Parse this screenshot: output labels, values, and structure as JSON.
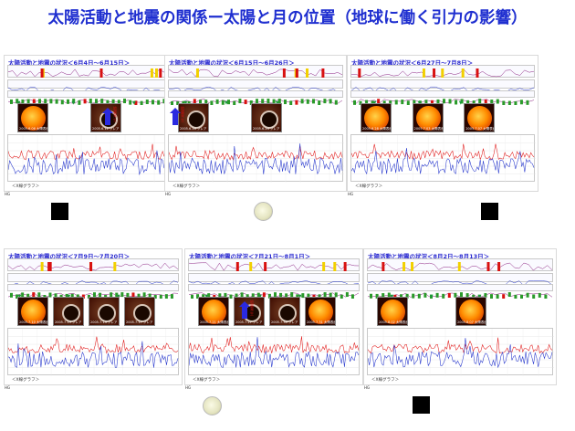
{
  "title": "太陽活動と地震の関係ー太陽と月の位置（地球に働く引力の影響）",
  "panels": [
    {
      "title": "太陽活動と地震の状況＜6月4日～6月15日＞",
      "caption": "＜X線グラフ＞",
      "hg": "HG",
      "images": [
        {
          "kind": "sun",
          "cap": "2005.6.06 太陽表面写真"
        },
        {
          "kind": "flare",
          "cap": "2005.6.11 フレア"
        }
      ],
      "arrow_label": "地震発生",
      "moon": "new"
    },
    {
      "title": "太陽活動と地震の状況＜6月15日～6月26日＞",
      "caption": "＜X線グラフ＞",
      "hg": "HG",
      "images": [
        {
          "kind": "flare",
          "cap": "2005.6.16 フレア"
        },
        {
          "kind": "flare",
          "cap": "2005.6.24 フレア"
        }
      ],
      "arrow_label": "地震発生",
      "moon": "full"
    },
    {
      "title": "太陽活動と地震の状況＜6月27日～7月8日＞",
      "caption": "＜X線グラフ＞",
      "hg": "HG",
      "images": [
        {
          "kind": "sun",
          "cap": "2005.6.28 太陽表面写真"
        },
        {
          "kind": "sun",
          "cap": "2005.7.03 太陽表面写真"
        },
        {
          "kind": "sun",
          "cap": "2005.7.07 太陽表面写真"
        }
      ],
      "moon": "new"
    },
    {
      "title": "太陽活動と地震の状況＜7月9日～7月20日＞",
      "caption": "＜X線グラフ＞",
      "hg": "HG",
      "images": [
        {
          "kind": "sun",
          "cap": "2005.7.10 太陽表面写真"
        },
        {
          "kind": "flare",
          "cap": "2005.7.13 フレア"
        },
        {
          "kind": "flare",
          "cap": "2005.7.14 フレア"
        },
        {
          "kind": "flare",
          "cap": "2005.7.17 フレア"
        }
      ],
      "moon": "none"
    },
    {
      "title": "太陽活動と地震の状況＜7月21日～8月1日＞",
      "caption": "＜X線グラフ＞",
      "hg": "HG",
      "images": [
        {
          "kind": "sun",
          "cap": "2005.7.21 太陽表面写真"
        },
        {
          "kind": "flare",
          "cap": "2005.7.27 フレア"
        },
        {
          "kind": "flare",
          "cap": "2005.7.30 フレア"
        },
        {
          "kind": "sun",
          "cap": "2005.7.31 太陽表面写真"
        }
      ],
      "arrow_label": "地震発生",
      "moon": "full"
    },
    {
      "title": "太陽活動と地震の状況＜8月2日～8月13日＞",
      "caption": "＜X線グラフ＞",
      "hg": "HG",
      "images": [
        {
          "kind": "sun",
          "cap": "2005.8.02 太陽表面写真"
        },
        {
          "kind": "sun",
          "cap": "2005.8.07 太陽表面写真"
        }
      ],
      "moon": "new"
    }
  ],
  "colors": {
    "title": "#1f2fd0",
    "series_red": "#e01818",
    "series_blue": "#2233cc",
    "bar_green": "#2a9a2a",
    "bar_red": "#d81010",
    "bar_yellow": "#f2d000"
  }
}
